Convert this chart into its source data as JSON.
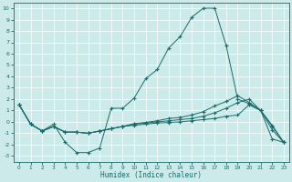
{
  "background_color": "#cceaea",
  "grid_color": "#ffffff",
  "line_color": "#1a6b6b",
  "xlabel": "Humidex (Indice chaleur)",
  "xlim": [
    -0.5,
    23.5
  ],
  "ylim": [
    -3.5,
    10.5
  ],
  "xticks": [
    0,
    1,
    2,
    3,
    4,
    5,
    6,
    7,
    8,
    9,
    10,
    11,
    12,
    13,
    14,
    15,
    16,
    17,
    18,
    19,
    20,
    21,
    22,
    23
  ],
  "yticks": [
    -3,
    -2,
    -1,
    0,
    1,
    2,
    3,
    4,
    5,
    6,
    7,
    8,
    9,
    10
  ],
  "line1_y": [
    1.5,
    -0.2,
    -0.8,
    -0.2,
    -1.8,
    -2.7,
    -2.7,
    -2.3,
    1.2,
    1.2,
    2.1,
    3.8,
    4.6,
    6.5,
    7.5,
    9.2,
    10.0,
    10.0,
    6.7,
    2.0,
    1.6,
    1.0,
    -0.3,
    -1.8
  ],
  "line2_y": [
    1.5,
    -0.2,
    -0.8,
    -0.4,
    -0.9,
    -0.9,
    -1.0,
    -0.8,
    -0.6,
    -0.4,
    -0.3,
    -0.2,
    -0.1,
    -0.05,
    0.0,
    0.1,
    0.2,
    0.3,
    0.5,
    0.6,
    1.5,
    1.0,
    -1.5,
    -1.8
  ],
  "line3_y": [
    1.5,
    -0.2,
    -0.8,
    -0.4,
    -0.9,
    -0.9,
    -1.0,
    -0.8,
    -0.6,
    -0.4,
    -0.2,
    -0.1,
    0.0,
    0.1,
    0.2,
    0.3,
    0.5,
    0.8,
    1.2,
    1.7,
    2.0,
    1.0,
    -0.4,
    -1.8
  ],
  "line4_y": [
    1.5,
    -0.2,
    -0.8,
    -0.4,
    -0.9,
    -0.9,
    -1.0,
    -0.8,
    -0.6,
    -0.4,
    -0.15,
    -0.05,
    0.1,
    0.3,
    0.4,
    0.6,
    0.9,
    1.4,
    1.8,
    2.3,
    1.7,
    1.0,
    -0.7,
    -1.8
  ]
}
